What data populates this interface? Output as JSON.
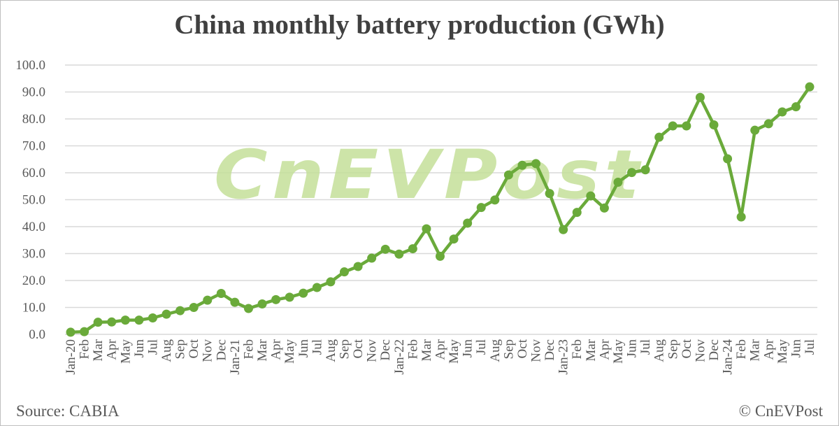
{
  "chart_data": {
    "type": "line",
    "title": "China monthly battery production (GWh)",
    "categories": [
      "Jan-20",
      "Feb",
      "Mar",
      "Apr",
      "May",
      "Jun",
      "Jul",
      "Aug",
      "Sep",
      "Oct",
      "Nov",
      "Dec",
      "Jan-21",
      "Feb",
      "Mar",
      "Apr",
      "May",
      "Jun",
      "Jul",
      "Aug",
      "Sep",
      "Oct",
      "Nov",
      "Dec",
      "Jan-22",
      "Feb",
      "Mar",
      "Apr",
      "May",
      "Jun",
      "Jul",
      "Aug",
      "Sep",
      "Oct",
      "Nov",
      "Dec",
      "Jan-23",
      "Feb",
      "Mar",
      "Apr",
      "May",
      "Jun",
      "Jul",
      "Aug",
      "Sep",
      "Oct",
      "Nov",
      "Dec",
      "Jan-24",
      "Feb",
      "Mar",
      "Apr",
      "May",
      "Jun",
      "Jul"
    ],
    "values": [
      0.8,
      1.0,
      4.5,
      4.6,
      5.3,
      5.3,
      6.1,
      7.5,
      8.8,
      10.0,
      12.7,
      15.2,
      11.9,
      9.6,
      11.3,
      12.9,
      13.8,
      15.3,
      17.4,
      19.5,
      23.2,
      25.2,
      28.3,
      31.6,
      29.8,
      31.8,
      39.2,
      29.0,
      35.4,
      41.3,
      47.1,
      49.9,
      59.2,
      62.8,
      63.4,
      52.3,
      38.9,
      45.3,
      51.4,
      46.9,
      56.5,
      60.1,
      61.1,
      73.2,
      77.4,
      77.4,
      88.0,
      77.8,
      65.2,
      43.6,
      75.8,
      78.2,
      82.6,
      84.5,
      91.9
    ],
    "ylim": [
      0,
      100
    ],
    "yticks": [
      "0.0",
      "10.0",
      "20.0",
      "30.0",
      "40.0",
      "50.0",
      "60.0",
      "70.0",
      "80.0",
      "90.0",
      "100.0"
    ],
    "grid": true,
    "legend": "none",
    "line_color": "#6aaa3a",
    "xlabel": "",
    "ylabel": ""
  },
  "watermark": "CnEVPost",
  "source": "Source: CABIA",
  "credit": "© CnEVPost"
}
